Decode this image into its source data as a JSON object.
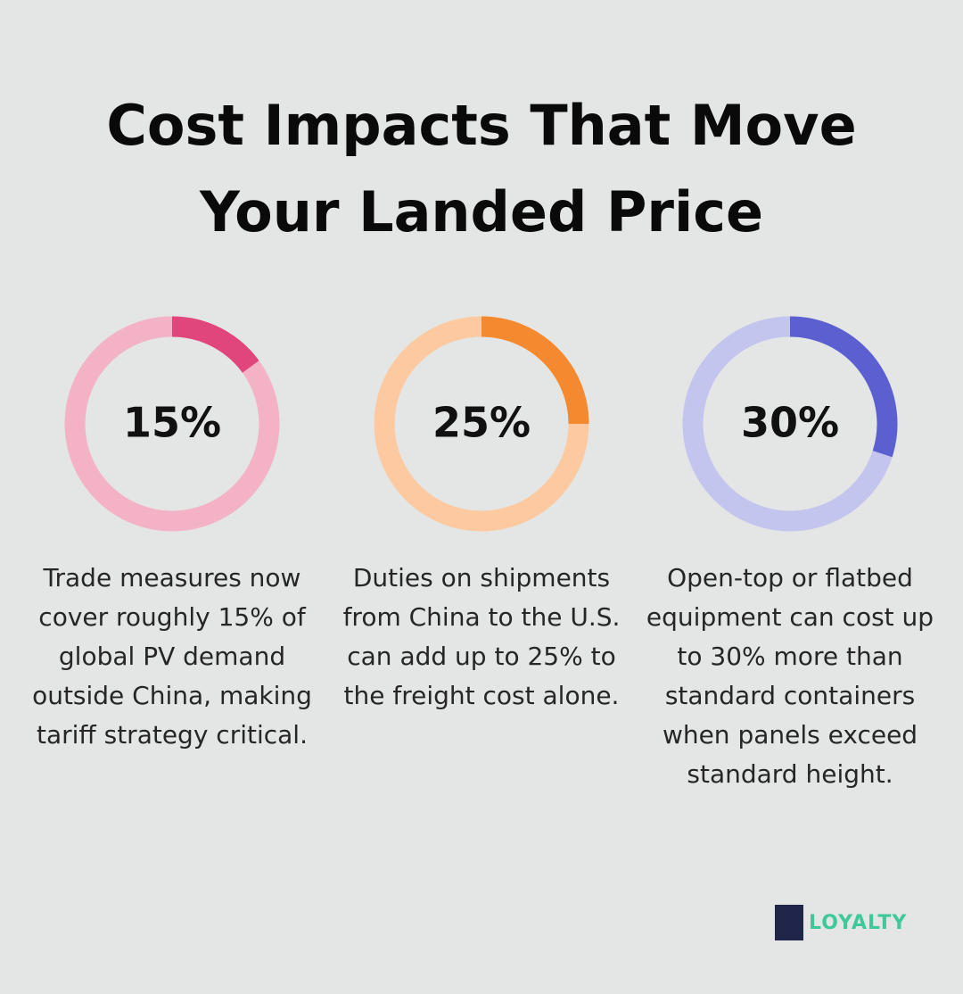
{
  "title": "Cost Impacts That Move Your Landed Price",
  "chart_data": [
    {
      "type": "donut",
      "values": [
        15
      ],
      "value_labels": [
        "15%"
      ],
      "ylim": [
        0,
        100
      ],
      "color": "#e0457b",
      "track_color": "#f4b2c6",
      "caption": "Trade measures now cover roughly 15% of global PV demand outside China, making tariff strategy critical."
    },
    {
      "type": "donut",
      "values": [
        25
      ],
      "value_labels": [
        "25%"
      ],
      "ylim": [
        0,
        100
      ],
      "color": "#f5892f",
      "track_color": "#fdc9a0",
      "caption": "Duties on shipments from China to the U.S. can add up to 25% to the freight cost alone."
    },
    {
      "type": "donut",
      "values": [
        30
      ],
      "value_labels": [
        "30%"
      ],
      "ylim": [
        0,
        100
      ],
      "color": "#5b5fcf",
      "track_color": "#c3c5ef",
      "caption": "Open-top or flatbed equipment can cost up to 30% more than standard containers when panels exceed standard height."
    }
  ],
  "logo": {
    "text": "LOYALTY"
  }
}
